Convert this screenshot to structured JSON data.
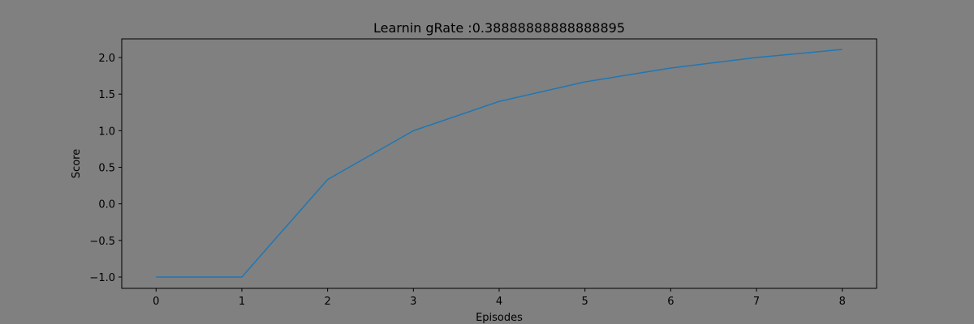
{
  "chart_data": {
    "type": "line",
    "title": "Learnin gRate :0.38888888888888895",
    "xlabel": "Episodes",
    "ylabel": "Score",
    "xlim": [
      -0.4,
      8.4
    ],
    "ylim": [
      -1.155,
      2.255
    ],
    "xticks": [
      0,
      1,
      2,
      3,
      4,
      5,
      6,
      7,
      8
    ],
    "xtick_labels": [
      "0",
      "1",
      "2",
      "3",
      "4",
      "5",
      "6",
      "7",
      "8"
    ],
    "yticks": [
      -1.0,
      -0.5,
      0.0,
      0.5,
      1.0,
      1.5,
      2.0
    ],
    "ytick_labels": [
      "−1.0",
      "−0.5",
      "0.0",
      "0.5",
      "1.0",
      "1.5",
      "2.0"
    ],
    "grid": false,
    "series": [
      {
        "x": [
          0,
          1,
          2,
          3,
          4,
          5,
          6,
          7,
          8
        ],
        "values": [
          -1.0,
          -1.0,
          0.333,
          1.0,
          1.4,
          1.667,
          1.857,
          2.0,
          2.111
        ],
        "color": "#1f77b4"
      }
    ]
  },
  "colors": {
    "background": "#808080",
    "axes_face": "#808080",
    "spine": "#000000"
  }
}
